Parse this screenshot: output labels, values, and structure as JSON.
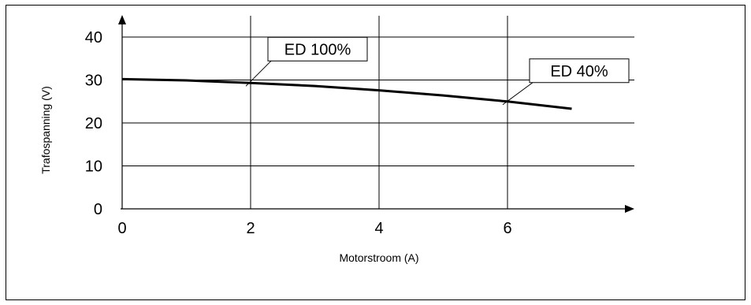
{
  "chart_data": {
    "type": "line",
    "title": "",
    "xlabel": "Motorstroom (A)",
    "ylabel": "Trafospanning (V)",
    "xlim": [
      0,
      8
    ],
    "ylim": [
      0,
      40
    ],
    "x_ticks": [
      "0",
      "2",
      "4",
      "6"
    ],
    "y_ticks": [
      "0",
      "10",
      "20",
      "30",
      "40"
    ],
    "grid": true,
    "series": [
      {
        "points": [
          {
            "x": 0,
            "y": 30.2
          },
          {
            "x": 1,
            "y": 29.9
          },
          {
            "x": 2,
            "y": 29.3
          },
          {
            "x": 3,
            "y": 28.6
          },
          {
            "x": 4,
            "y": 27.6
          },
          {
            "x": 5,
            "y": 26.4
          },
          {
            "x": 6,
            "y": 25.0
          },
          {
            "x": 7,
            "y": 23.3
          }
        ]
      }
    ],
    "annotations": [
      {
        "text": "ED 100%",
        "x": 2,
        "y": 29.3
      },
      {
        "text": "ED 40%",
        "x": 6,
        "y": 25.0
      }
    ],
    "colors": {
      "line": "#000000",
      "grid": "#000000"
    }
  }
}
